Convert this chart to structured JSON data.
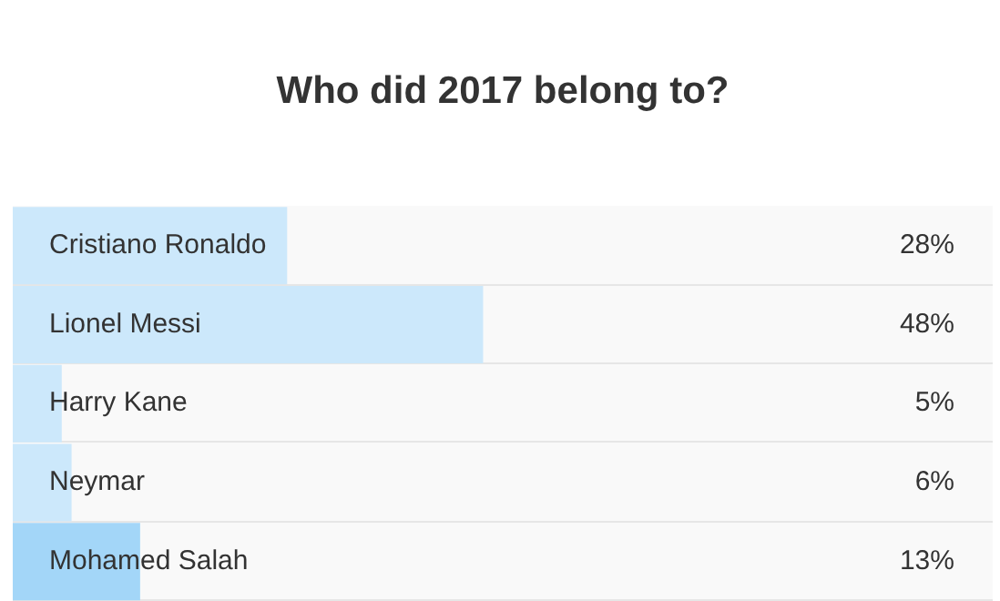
{
  "chart_data": {
    "type": "bar",
    "orientation": "horizontal",
    "title": "Who did 2017 belong to?",
    "categories": [
      "Cristiano Ronaldo",
      "Lionel Messi",
      "Harry Kane",
      "Neymar",
      "Mohamed Salah"
    ],
    "values": [
      28,
      48,
      5,
      6,
      13
    ],
    "colors": [
      "#cce8fb",
      "#cce8fb",
      "#cce8fb",
      "#cce8fb",
      "#a3d6f8"
    ],
    "value_labels": [
      "28%",
      "48%",
      "5%",
      "6%",
      "13%"
    ],
    "xlim": [
      0,
      100
    ]
  }
}
